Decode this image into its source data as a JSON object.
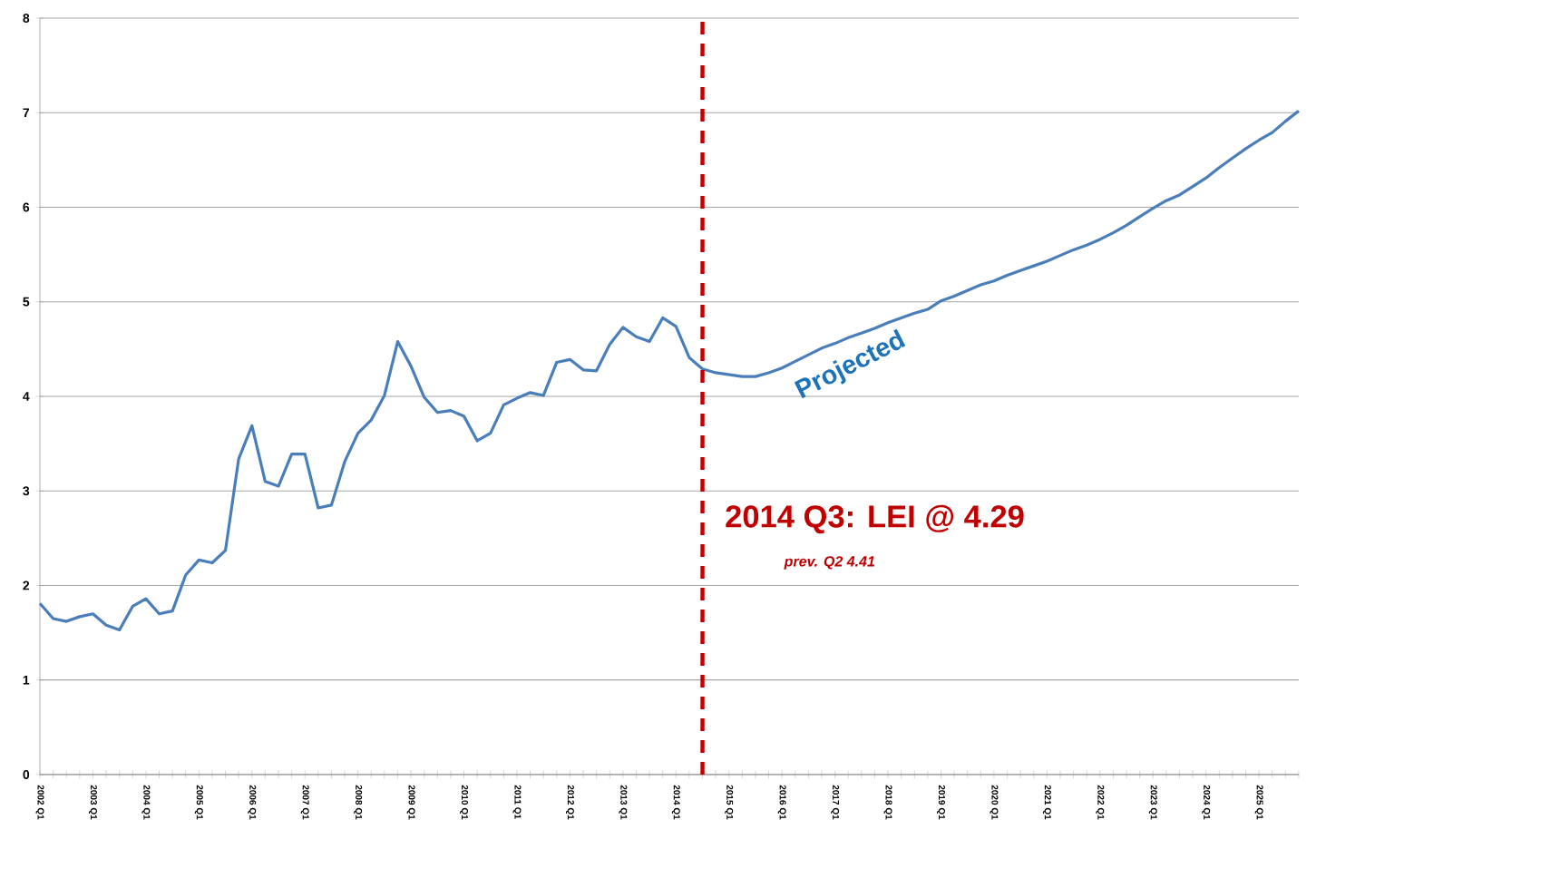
{
  "chart_data": {
    "type": "line",
    "categories": [
      "2002 Q1",
      null,
      null,
      null,
      "2003 Q1",
      null,
      null,
      null,
      "2004 Q1",
      null,
      null,
      null,
      "2005 Q1",
      null,
      null,
      null,
      "2006 Q1",
      null,
      null,
      null,
      "2007 Q1",
      null,
      null,
      null,
      "2008 Q1",
      null,
      null,
      null,
      "2009 Q1",
      null,
      null,
      null,
      "2010 Q1",
      null,
      null,
      null,
      "2011 Q1",
      null,
      null,
      null,
      "2012 Q1",
      null,
      null,
      null,
      "2013 Q1",
      null,
      null,
      null,
      "2014 Q1",
      null,
      null,
      null,
      "2015 Q1",
      null,
      null,
      null,
      "2016 Q1",
      null,
      null,
      null,
      "2017 Q1",
      null,
      null,
      null,
      "2018 Q1",
      null,
      null,
      null,
      "2019 Q1",
      null,
      null,
      null,
      "2020 Q1",
      null,
      null,
      null,
      "2021 Q1",
      null,
      null,
      null,
      "2022 Q1",
      null,
      null,
      null,
      "2023 Q1",
      null,
      null,
      null,
      "2024 Q1",
      null,
      null,
      null,
      "2025 Q1",
      null,
      null,
      null
    ],
    "series": [
      {
        "color": "#4a7ebb",
        "values": [
          1.81,
          1.65,
          1.62,
          1.67,
          1.7,
          1.58,
          1.53,
          1.78,
          1.86,
          1.7,
          1.73,
          2.11,
          2.27,
          2.24,
          2.37,
          3.34,
          3.69,
          3.1,
          3.05,
          3.39,
          3.39,
          2.82,
          2.85,
          3.31,
          3.61,
          3.75,
          4.01,
          4.58,
          4.32,
          3.99,
          3.83,
          3.85,
          3.79,
          3.53,
          3.61,
          3.91,
          3.98,
          4.04,
          4.01,
          4.36,
          4.39,
          4.28,
          4.27,
          4.55,
          4.73,
          4.63,
          4.58,
          4.83,
          4.74,
          4.41,
          4.29,
          4.25,
          4.23,
          4.21,
          4.21,
          4.25,
          4.3,
          4.37,
          4.44,
          4.51,
          4.56,
          4.62,
          4.67,
          4.72,
          4.78,
          4.83,
          4.88,
          4.92,
          5.01,
          5.06,
          5.12,
          5.18,
          5.22,
          5.28,
          5.33,
          5.38,
          5.43,
          5.49,
          5.55,
          5.6,
          5.66,
          5.73,
          5.81,
          5.9,
          5.99,
          6.07,
          6.13,
          6.22,
          6.31,
          6.42,
          6.52,
          6.62,
          6.71,
          6.79,
          6.91,
          7.02
        ]
      }
    ],
    "ylim": [
      0,
      8
    ],
    "yticks": [
      0,
      1,
      2,
      3,
      4,
      5,
      6,
      7,
      8
    ],
    "grid": "y",
    "marker": "none",
    "line_style": "solid",
    "annotations": [
      "Projected",
      "2014 Q3: LEI @ 4.29",
      "prev. Q2 4.41"
    ]
  }
}
